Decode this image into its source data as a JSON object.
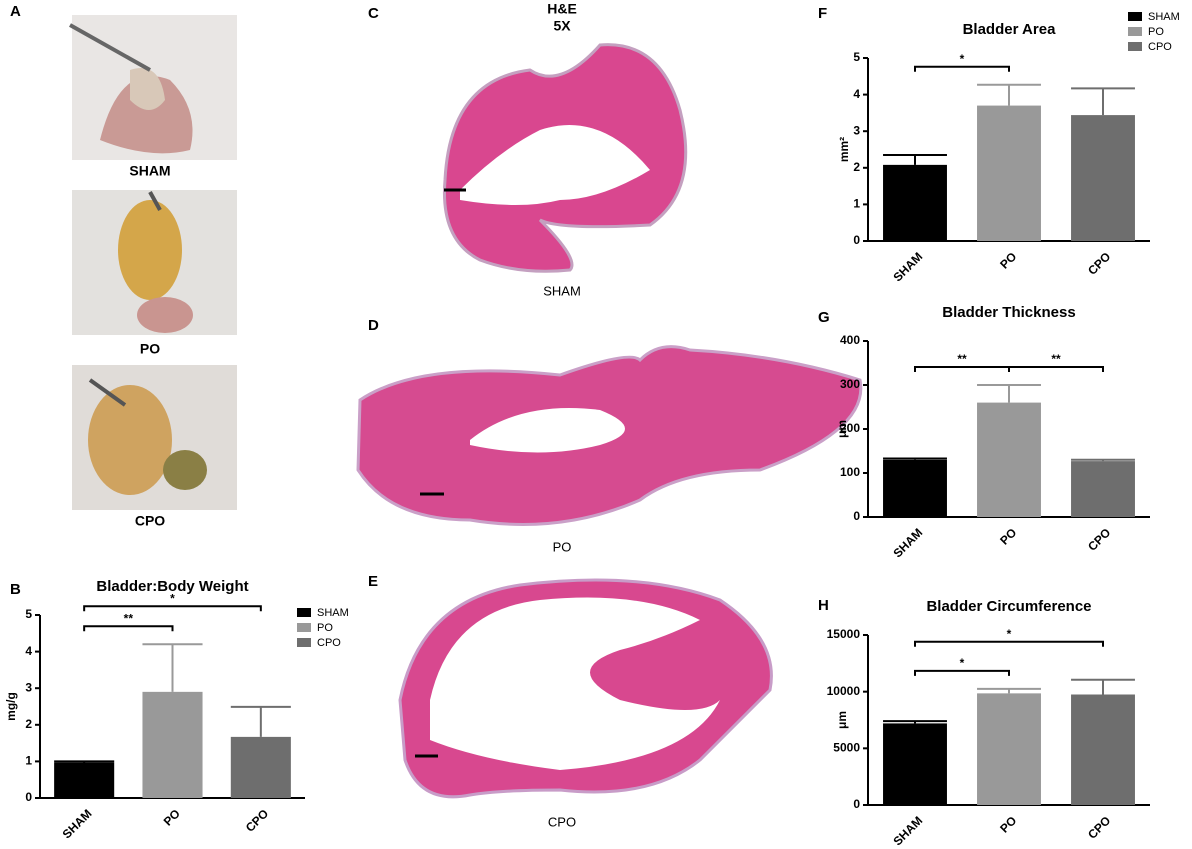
{
  "panels": {
    "a": "A",
    "c": "C",
    "d": "D",
    "e": "E",
    "photo_captions": [
      "SHAM",
      "PO",
      "CPO"
    ],
    "stain": "H&E",
    "magnification": "5X",
    "histology_captions": [
      "SHAM",
      "PO",
      "CPO"
    ]
  },
  "chart_data": [
    {
      "type": "bar",
      "panel": "B",
      "title": "Bladder:Body Weight",
      "y_label": "mg/g",
      "categories": [
        "SHAM",
        "PO",
        "CPO"
      ],
      "values": [
        0.97,
        2.9,
        1.67
      ],
      "errors": [
        0.03,
        1.3,
        0.82
      ],
      "colors": [
        "#000000",
        "#999999",
        "#6e6e6e"
      ],
      "ylim": [
        0,
        5
      ],
      "yticks": [
        0,
        1,
        2,
        3,
        4,
        5
      ],
      "legend": "upper right",
      "significance": [
        {
          "text": "**",
          "span": [
            0,
            1
          ]
        },
        {
          "text": "*",
          "span": [
            0,
            2
          ]
        }
      ]
    },
    {
      "type": "bar",
      "panel": "F",
      "title": "Bladder Area",
      "y_label": "mm²",
      "categories": [
        "SHAM",
        "PO",
        "CPO"
      ],
      "values": [
        2.08,
        3.7,
        3.44
      ],
      "errors": [
        0.27,
        0.57,
        0.73
      ],
      "colors": [
        "#000000",
        "#999999",
        "#6e6e6e"
      ],
      "ylim": [
        0,
        5
      ],
      "yticks": [
        0,
        1,
        2,
        3,
        4,
        5
      ],
      "legend": "upper right",
      "significance": [
        {
          "text": "*",
          "span": [
            0,
            1
          ]
        }
      ]
    },
    {
      "type": "bar",
      "panel": "G",
      "title": "Bladder Thickness",
      "y_label": "μm",
      "categories": [
        "SHAM",
        "PO",
        "CPO"
      ],
      "values": [
        130,
        260,
        127
      ],
      "errors": [
        3,
        40,
        3
      ],
      "colors": [
        "#000000",
        "#999999",
        "#6e6e6e"
      ],
      "ylim": [
        0,
        400
      ],
      "yticks": [
        0,
        100,
        200,
        300,
        400
      ],
      "significance": [
        {
          "text": "**",
          "span": [
            0,
            1
          ]
        },
        {
          "text": "**",
          "span": [
            1,
            2
          ]
        }
      ]
    },
    {
      "type": "bar",
      "panel": "H",
      "title": "Bladder Circumference",
      "y_label": "μm",
      "categories": [
        "SHAM",
        "PO",
        "CPO"
      ],
      "values": [
        7200,
        9850,
        9750
      ],
      "errors": [
        200,
        400,
        1300
      ],
      "colors": [
        "#000000",
        "#999999",
        "#6e6e6e"
      ],
      "ylim": [
        0,
        15000
      ],
      "yticks": [
        0,
        5000,
        10000,
        15000
      ],
      "significance": [
        {
          "text": "*",
          "span": [
            0,
            1
          ]
        },
        {
          "text": "*",
          "span": [
            0,
            2
          ]
        }
      ]
    }
  ]
}
